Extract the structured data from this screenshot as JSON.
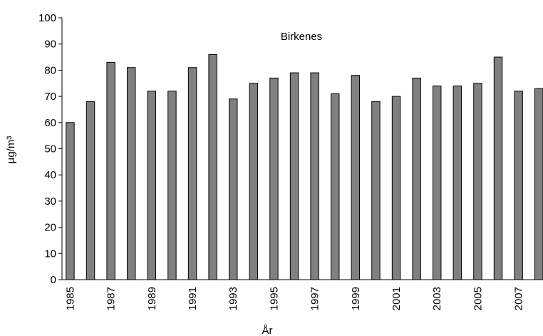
{
  "chart_data": {
    "type": "bar",
    "title": "Birkenes",
    "xlabel": "År",
    "ylabel": "µg/m³",
    "categories": [
      "1985",
      null,
      "1987",
      null,
      "1989",
      null,
      "1991",
      null,
      "1993",
      null,
      "1995",
      null,
      "1997",
      null,
      "1999",
      null,
      "2001",
      null,
      "2003",
      null,
      "2005",
      null,
      "2007",
      null
    ],
    "values": [
      60,
      68,
      83,
      81,
      72,
      72,
      81,
      86,
      69,
      75,
      77,
      79,
      79,
      71,
      78,
      68,
      70,
      77,
      74,
      74,
      75,
      85,
      72,
      73
    ],
    "color": "#808080",
    "ylim": [
      0,
      100
    ],
    "yticks": [
      0,
      10,
      20,
      30,
      40,
      50,
      60,
      70,
      80,
      90,
      100
    ]
  }
}
